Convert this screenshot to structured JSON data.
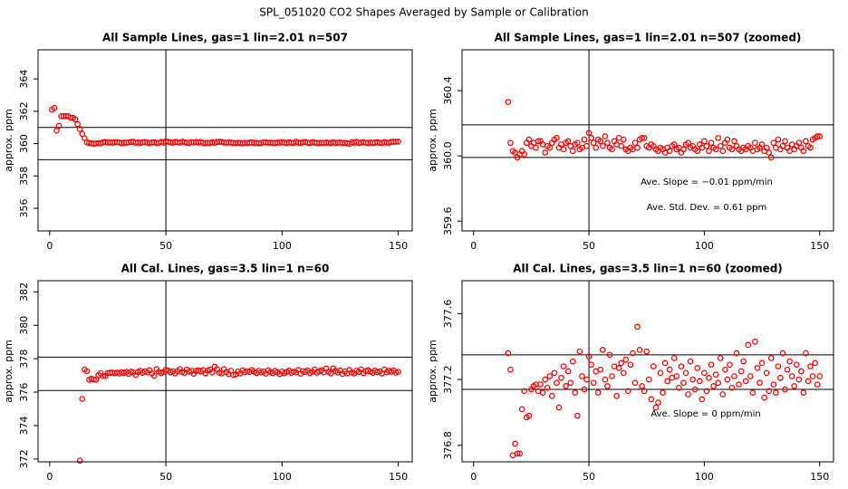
{
  "title": "SPL_051020  CO2 Shapes Averaged by Sample or Calibration",
  "chart_data": [
    {
      "type": "scatter",
      "title": "All Sample Lines, gas=1 lin=2.01 n=507",
      "y_label": "approx. ppm",
      "color": "#ff0000",
      "xlim": [
        -5,
        156
      ],
      "ylim": [
        354.6,
        365.8
      ],
      "xticks": [
        0,
        50,
        100,
        150
      ],
      "yticks": [
        356,
        358,
        360,
        362,
        364
      ],
      "hlines": [
        361,
        359
      ],
      "vline": 50,
      "annotations": [],
      "x": [
        1,
        2,
        3,
        4,
        5,
        6,
        7,
        8,
        9,
        10,
        11,
        12,
        13,
        14,
        15,
        16,
        17,
        18,
        19,
        20,
        21,
        22,
        23,
        24,
        25,
        26,
        27,
        28,
        29,
        30,
        31,
        32,
        33,
        34,
        35,
        36,
        37,
        38,
        39,
        40,
        41,
        42,
        43,
        44,
        45,
        46,
        47,
        48,
        49,
        50,
        51,
        52,
        53,
        54,
        55,
        56,
        57,
        58,
        59,
        60,
        61,
        62,
        63,
        64,
        65,
        66,
        67,
        68,
        69,
        70,
        71,
        72,
        73,
        74,
        75,
        76,
        77,
        78,
        79,
        80,
        81,
        82,
        83,
        84,
        85,
        86,
        87,
        88,
        89,
        90,
        91,
        92,
        93,
        94,
        95,
        96,
        97,
        98,
        99,
        100,
        101,
        102,
        103,
        104,
        105,
        106,
        107,
        108,
        109,
        110,
        111,
        112,
        113,
        114,
        115,
        116,
        117,
        118,
        119,
        120,
        121,
        122,
        123,
        124,
        125,
        126,
        127,
        128,
        129,
        130,
        131,
        132,
        133,
        134,
        135,
        136,
        137,
        138,
        139,
        140,
        141,
        142,
        143,
        144,
        145,
        146,
        147,
        148,
        149,
        150
      ],
      "values": [
        362.1,
        362.2,
        360.8,
        361.1,
        361.7,
        361.7,
        361.7,
        361.7,
        361.6,
        361.6,
        361.5,
        361.2,
        360.9,
        360.6,
        360.33,
        360.08,
        360.03,
        360.02,
        359.99,
        360.01,
        360.03,
        360.01,
        360.08,
        360.1,
        360.06,
        360.08,
        360.05,
        360.09,
        360.09,
        360.07,
        360.02,
        360.06,
        360.05,
        360.08,
        360.1,
        360.11,
        360.05,
        360.07,
        360.04,
        360.08,
        360.09,
        360.06,
        360.03,
        360.07,
        360.08,
        360.04,
        360.05,
        360.1,
        360.06,
        360.14,
        360.11,
        360.08,
        360.05,
        360.1,
        360.09,
        360.06,
        360.12,
        360.08,
        360.05,
        360.04,
        360.09,
        360.07,
        360.11,
        360.06,
        360.1,
        360.04,
        360.03,
        360.05,
        360.04,
        360.08,
        360.05,
        360.1,
        360.11,
        360.11,
        360.06,
        360.05,
        360.07,
        360.06,
        360.04,
        360.03,
        360.05,
        360.04,
        360.02,
        360.05,
        360.03,
        360.06,
        360.07,
        360.04,
        360.05,
        360.02,
        360.04,
        360.07,
        360.08,
        360.05,
        360.06,
        360.04,
        360.03,
        360.07,
        360.05,
        360.09,
        360.06,
        360.03,
        360.08,
        360.05,
        360.04,
        360.11,
        360.06,
        360.03,
        360.08,
        360.1,
        360.05,
        360.04,
        360.09,
        360.06,
        360.04,
        360.03,
        360.05,
        360.04,
        360.06,
        360.05,
        360.03,
        360.08,
        360.04,
        360.05,
        360.07,
        360.03,
        360.05,
        360.02,
        359.99,
        360.08,
        360.05,
        360.1,
        360.04,
        360.06,
        360.09,
        360.05,
        360.03,
        360.07,
        360.04,
        360.06,
        360.08,
        360.05,
        360.03,
        360.09,
        360.06,
        360.05,
        360.1,
        360.11,
        360.12,
        360.12
      ]
    },
    {
      "type": "scatter",
      "title": "All Sample Lines, gas=1 lin=2.01 n=507 (zoomed)",
      "y_label": "approx. ppm",
      "color": "#ff0000",
      "xlim": [
        -5,
        156
      ],
      "ylim": [
        359.54,
        360.65
      ],
      "xticks": [
        0,
        50,
        100,
        150
      ],
      "yticks": [
        359.6,
        {
          "value": 360,
          "label": "360.0"
        },
        360.4
      ],
      "hlines": [
        360.19,
        359.99
      ],
      "vline": 50,
      "annotations": [
        "Ave. Slope = −0.01  ppm/min",
        "Ave. Std. Dev. = 0.61  ppm"
      ],
      "x": [
        15,
        16,
        17,
        18,
        19,
        20,
        21,
        22,
        23,
        24,
        25,
        26,
        27,
        28,
        29,
        30,
        31,
        32,
        33,
        34,
        35,
        36,
        37,
        38,
        39,
        40,
        41,
        42,
        43,
        44,
        45,
        46,
        47,
        48,
        49,
        50,
        51,
        52,
        53,
        54,
        55,
        56,
        57,
        58,
        59,
        60,
        61,
        62,
        63,
        64,
        65,
        66,
        67,
        68,
        69,
        70,
        71,
        72,
        73,
        74,
        75,
        76,
        77,
        78,
        79,
        80,
        81,
        82,
        83,
        84,
        85,
        86,
        87,
        88,
        89,
        90,
        91,
        92,
        93,
        94,
        95,
        96,
        97,
        98,
        99,
        100,
        101,
        102,
        103,
        104,
        105,
        106,
        107,
        108,
        109,
        110,
        111,
        112,
        113,
        114,
        115,
        116,
        117,
        118,
        119,
        120,
        121,
        122,
        123,
        124,
        125,
        126,
        127,
        128,
        129,
        130,
        131,
        132,
        133,
        134,
        135,
        136,
        137,
        138,
        139,
        140,
        141,
        142,
        143,
        144,
        145,
        146,
        147,
        148,
        149,
        150
      ],
      "values": [
        360.33,
        360.08,
        360.03,
        360.02,
        359.99,
        360.01,
        360.03,
        360.01,
        360.08,
        360.1,
        360.06,
        360.08,
        360.05,
        360.09,
        360.09,
        360.07,
        360.02,
        360.06,
        360.05,
        360.08,
        360.1,
        360.11,
        360.05,
        360.07,
        360.04,
        360.08,
        360.09,
        360.06,
        360.03,
        360.07,
        360.08,
        360.04,
        360.05,
        360.1,
        360.06,
        360.14,
        360.11,
        360.08,
        360.05,
        360.1,
        360.09,
        360.06,
        360.12,
        360.08,
        360.05,
        360.04,
        360.09,
        360.07,
        360.11,
        360.06,
        360.1,
        360.04,
        360.03,
        360.05,
        360.04,
        360.08,
        360.05,
        360.1,
        360.11,
        360.11,
        360.06,
        360.05,
        360.07,
        360.06,
        360.04,
        360.03,
        360.05,
        360.04,
        360.02,
        360.05,
        360.03,
        360.06,
        360.07,
        360.04,
        360.05,
        360.02,
        360.04,
        360.07,
        360.08,
        360.05,
        360.06,
        360.04,
        360.03,
        360.07,
        360.05,
        360.09,
        360.06,
        360.03,
        360.08,
        360.05,
        360.04,
        360.11,
        360.06,
        360.03,
        360.08,
        360.1,
        360.05,
        360.04,
        360.09,
        360.06,
        360.04,
        360.03,
        360.05,
        360.04,
        360.06,
        360.05,
        360.03,
        360.08,
        360.04,
        360.05,
        360.07,
        360.03,
        360.05,
        360.02,
        359.99,
        360.08,
        360.05,
        360.1,
        360.04,
        360.06,
        360.09,
        360.05,
        360.03,
        360.07,
        360.04,
        360.06,
        360.08,
        360.05,
        360.03,
        360.09,
        360.06,
        360.05,
        360.1,
        360.11,
        360.12,
        360.12
      ]
    },
    {
      "type": "scatter",
      "title": "All Cal. Lines, gas=3.5 lin=1 n=60",
      "y_label": "approx. ppm",
      "color": "#ff0000",
      "xlim": [
        -5,
        156
      ],
      "ylim": [
        371.83,
        382.67
      ],
      "xticks": [
        0,
        50,
        100,
        150
      ],
      "yticks": [
        372,
        374,
        376,
        378,
        380,
        382
      ],
      "hlines": [
        378.1,
        376.1
      ],
      "vline": 50,
      "annotations": [],
      "x": [
        13,
        14,
        15,
        16,
        17,
        18,
        19,
        20,
        21,
        22,
        23,
        24,
        25,
        26,
        27,
        28,
        29,
        30,
        31,
        32,
        33,
        34,
        35,
        36,
        37,
        38,
        39,
        40,
        41,
        42,
        43,
        44,
        45,
        46,
        47,
        48,
        49,
        50,
        51,
        52,
        53,
        54,
        55,
        56,
        57,
        58,
        59,
        60,
        61,
        62,
        63,
        64,
        65,
        66,
        67,
        68,
        69,
        70,
        71,
        72,
        73,
        74,
        75,
        76,
        77,
        78,
        79,
        80,
        81,
        82,
        83,
        84,
        85,
        86,
        87,
        88,
        89,
        90,
        91,
        92,
        93,
        94,
        95,
        96,
        97,
        98,
        99,
        100,
        101,
        102,
        103,
        104,
        105,
        106,
        107,
        108,
        109,
        110,
        111,
        112,
        113,
        114,
        115,
        116,
        117,
        118,
        119,
        120,
        121,
        122,
        123,
        124,
        125,
        126,
        127,
        128,
        129,
        130,
        131,
        132,
        133,
        134,
        135,
        136,
        137,
        138,
        139,
        140,
        141,
        142,
        143,
        144,
        145,
        146,
        147,
        148,
        149,
        150
      ],
      "values": [
        371.9,
        375.6,
        377.36,
        377.26,
        376.74,
        376.81,
        376.75,
        376.75,
        377.02,
        377.13,
        376.97,
        376.98,
        377.14,
        377.16,
        377.17,
        377.13,
        377.17,
        377.12,
        377.2,
        377.15,
        377.22,
        377.1,
        377.24,
        377.18,
        377.03,
        377.21,
        377.28,
        377.16,
        377.25,
        377.18,
        377.31,
        377.12,
        376.98,
        377.37,
        377.22,
        377.14,
        377.2,
        377.34,
        377.29,
        377.18,
        377.25,
        377.12,
        377.26,
        377.38,
        377.2,
        377.16,
        377.35,
        377.22,
        377.28,
        377.1,
        377.27,
        377.3,
        377.24,
        377.32,
        377.13,
        377.29,
        377.36,
        377.18,
        377.52,
        377.38,
        377.16,
        377.13,
        377.37,
        377.2,
        377.08,
        377.28,
        377.03,
        377.06,
        377.24,
        377.12,
        377.3,
        377.19,
        377.26,
        377.21,
        377.33,
        377.22,
        377.15,
        377.28,
        377.18,
        377.24,
        377.11,
        377.31,
        377.2,
        377.14,
        377.27,
        377.19,
        377.08,
        377.24,
        377.13,
        377.21,
        377.29,
        377.16,
        377.23,
        377.18,
        377.33,
        377.11,
        377.26,
        377.2,
        377.29,
        377.15,
        377.22,
        377.36,
        377.17,
        377.25,
        377.31,
        377.19,
        377.41,
        377.22,
        377.12,
        377.43,
        377.27,
        377.18,
        377.3,
        377.09,
        377.24,
        377.13,
        377.33,
        377.17,
        377.12,
        377.28,
        377.21,
        377.36,
        377.14,
        377.26,
        377.31,
        377.22,
        377.16,
        377.29,
        377.2,
        377.25,
        377.12,
        377.36,
        377.19,
        377.28,
        377.22,
        377.3,
        377.17,
        377.22
      ]
    },
    {
      "type": "scatter",
      "title": "All Cal. Lines, gas=3.5 lin=1 n=60 (zoomed)",
      "y_label": "approx. ppm",
      "color": "#ff0000",
      "xlim": [
        -5,
        156
      ],
      "ylim": [
        376.7,
        377.8
      ],
      "xticks": [
        0,
        50,
        100,
        150
      ],
      "yticks": [
        376.8,
        377.2,
        377.6
      ],
      "hlines": [
        377.35,
        377.14
      ],
      "vline": 50,
      "annotations": [
        "Ave. Slope =  0  ppm/min"
      ],
      "x": [
        15,
        16,
        17,
        18,
        19,
        20,
        21,
        22,
        23,
        24,
        25,
        26,
        27,
        28,
        29,
        30,
        31,
        32,
        33,
        34,
        35,
        36,
        37,
        38,
        39,
        40,
        41,
        42,
        43,
        44,
        45,
        46,
        47,
        48,
        49,
        50,
        51,
        52,
        53,
        54,
        55,
        56,
        57,
        58,
        59,
        60,
        61,
        62,
        63,
        64,
        65,
        66,
        67,
        68,
        69,
        70,
        71,
        72,
        73,
        74,
        75,
        76,
        77,
        78,
        79,
        80,
        81,
        82,
        83,
        84,
        85,
        86,
        87,
        88,
        89,
        90,
        91,
        92,
        93,
        94,
        95,
        96,
        97,
        98,
        99,
        100,
        101,
        102,
        103,
        104,
        105,
        106,
        107,
        108,
        109,
        110,
        111,
        112,
        113,
        114,
        115,
        116,
        117,
        118,
        119,
        120,
        121,
        122,
        123,
        124,
        125,
        126,
        127,
        128,
        129,
        130,
        131,
        132,
        133,
        134,
        135,
        136,
        137,
        138,
        139,
        140,
        141,
        142,
        143,
        144,
        145,
        146,
        147,
        148,
        149,
        150
      ],
      "values": [
        377.36,
        377.26,
        376.74,
        376.81,
        376.75,
        376.75,
        377.02,
        377.13,
        376.97,
        376.98,
        377.14,
        377.16,
        377.17,
        377.13,
        377.17,
        377.12,
        377.2,
        377.15,
        377.22,
        377.1,
        377.24,
        377.18,
        377.03,
        377.21,
        377.28,
        377.16,
        377.25,
        377.18,
        377.31,
        377.12,
        376.98,
        377.37,
        377.22,
        377.14,
        377.2,
        377.34,
        377.29,
        377.18,
        377.25,
        377.12,
        377.26,
        377.38,
        377.2,
        377.16,
        377.35,
        377.22,
        377.28,
        377.1,
        377.27,
        377.3,
        377.24,
        377.32,
        377.13,
        377.29,
        377.36,
        377.18,
        377.52,
        377.38,
        377.16,
        377.13,
        377.37,
        377.2,
        377.08,
        377.28,
        377.03,
        377.06,
        377.24,
        377.12,
        377.3,
        377.19,
        377.26,
        377.21,
        377.33,
        377.22,
        377.15,
        377.28,
        377.18,
        377.24,
        377.11,
        377.31,
        377.2,
        377.14,
        377.27,
        377.19,
        377.08,
        377.24,
        377.13,
        377.21,
        377.29,
        377.16,
        377.23,
        377.18,
        377.33,
        377.11,
        377.26,
        377.2,
        377.29,
        377.15,
        377.22,
        377.36,
        377.17,
        377.25,
        377.31,
        377.19,
        377.41,
        377.22,
        377.12,
        377.43,
        377.27,
        377.18,
        377.3,
        377.09,
        377.24,
        377.13,
        377.33,
        377.17,
        377.12,
        377.28,
        377.21,
        377.36,
        377.14,
        377.26,
        377.31,
        377.22,
        377.16,
        377.29,
        377.2,
        377.25,
        377.12,
        377.36,
        377.19,
        377.28,
        377.22,
        377.3,
        377.17,
        377.22
      ]
    }
  ]
}
